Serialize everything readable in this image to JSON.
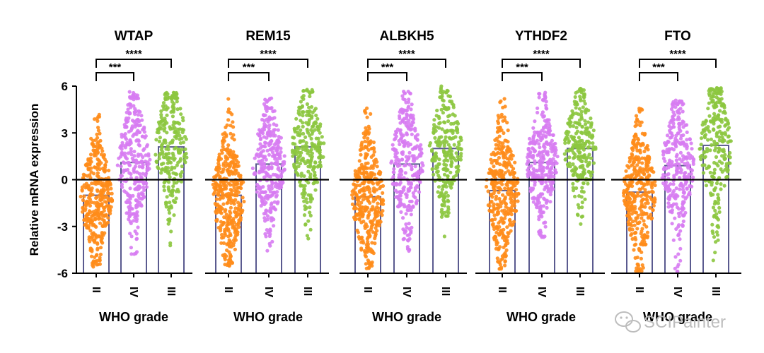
{
  "colors": {
    "II": "#FF8C1A",
    "IV": "#D77CF2",
    "III": "#8CC63F",
    "bar_stroke": "#5A5A8F",
    "axis": "#000000",
    "watermark": "#bdbdbd"
  },
  "watermark": {
    "text": "SCIPainter",
    "icon": "wechat-icon"
  },
  "chart_data": [
    {
      "type": "bar+scatter",
      "title": "WTAP",
      "categories": [
        "II",
        "IV",
        "III"
      ],
      "xlabel": "WHO grade",
      "ylabel": "Relative mRNA expression",
      "ylim": [
        -6,
        6
      ],
      "yticks": [
        "6",
        "3",
        "0",
        "-3",
        "-6"
      ],
      "means": [
        -1.0,
        1.1,
        2.1
      ],
      "ranges": [
        [
          -5.6,
          4.2
        ],
        [
          -4.8,
          5.7
        ],
        [
          -4.5,
          5.6
        ]
      ],
      "counts": [
        360,
        300,
        250
      ],
      "significance": [
        {
          "from": "II",
          "to": "IV",
          "label": "***"
        },
        {
          "from": "II",
          "to": "III",
          "label": "****"
        }
      ]
    },
    {
      "type": "bar+scatter",
      "title": "REM15",
      "categories": [
        "II",
        "IV",
        "III"
      ],
      "xlabel": "WHO grade",
      "ylim": [
        -6,
        6
      ],
      "means": [
        -1.0,
        1.0,
        2.1
      ],
      "ranges": [
        [
          -5.6,
          5.2
        ],
        [
          -4.6,
          5.3
        ],
        [
          -3.8,
          5.8
        ]
      ],
      "counts": [
        360,
        300,
        250
      ],
      "significance": [
        {
          "from": "II",
          "to": "IV",
          "label": "***"
        },
        {
          "from": "II",
          "to": "III",
          "label": "****"
        }
      ]
    },
    {
      "type": "bar+scatter",
      "title": "ALBKH5",
      "categories": [
        "II",
        "IV",
        "III"
      ],
      "xlabel": "WHO grade",
      "ylim": [
        -6,
        6
      ],
      "means": [
        -1.1,
        1.0,
        2.0
      ],
      "ranges": [
        [
          -5.7,
          4.7
        ],
        [
          -4.9,
          5.8
        ],
        [
          -3.7,
          6.0
        ]
      ],
      "counts": [
        360,
        300,
        250
      ],
      "significance": [
        {
          "from": "II",
          "to": "IV",
          "label": "***"
        },
        {
          "from": "II",
          "to": "III",
          "label": "****"
        }
      ]
    },
    {
      "type": "bar+scatter",
      "title": "YTHDF2",
      "categories": [
        "II",
        "IV",
        "III"
      ],
      "xlabel": "WHO grade",
      "ylim": [
        -6,
        6
      ],
      "means": [
        -0.7,
        1.1,
        2.0
      ],
      "ranges": [
        [
          -5.8,
          5.2
        ],
        [
          -3.8,
          5.7
        ],
        [
          -3.5,
          5.9
        ]
      ],
      "counts": [
        360,
        300,
        250
      ],
      "significance": [
        {
          "from": "II",
          "to": "IV",
          "label": "***"
        },
        {
          "from": "II",
          "to": "III",
          "label": "****"
        }
      ]
    },
    {
      "type": "bar+scatter",
      "title": "FTO",
      "categories": [
        "II",
        "IV",
        "III"
      ],
      "xlabel": "WHO grade",
      "ylim": [
        -6,
        6
      ],
      "means": [
        -0.8,
        0.9,
        2.2
      ],
      "ranges": [
        [
          -5.9,
          4.7
        ],
        [
          -5.9,
          5.1
        ],
        [
          -5.2,
          5.9
        ]
      ],
      "counts": [
        360,
        300,
        250
      ],
      "significance": [
        {
          "from": "II",
          "to": "IV",
          "label": "***"
        },
        {
          "from": "II",
          "to": "III",
          "label": "****"
        }
      ]
    }
  ]
}
